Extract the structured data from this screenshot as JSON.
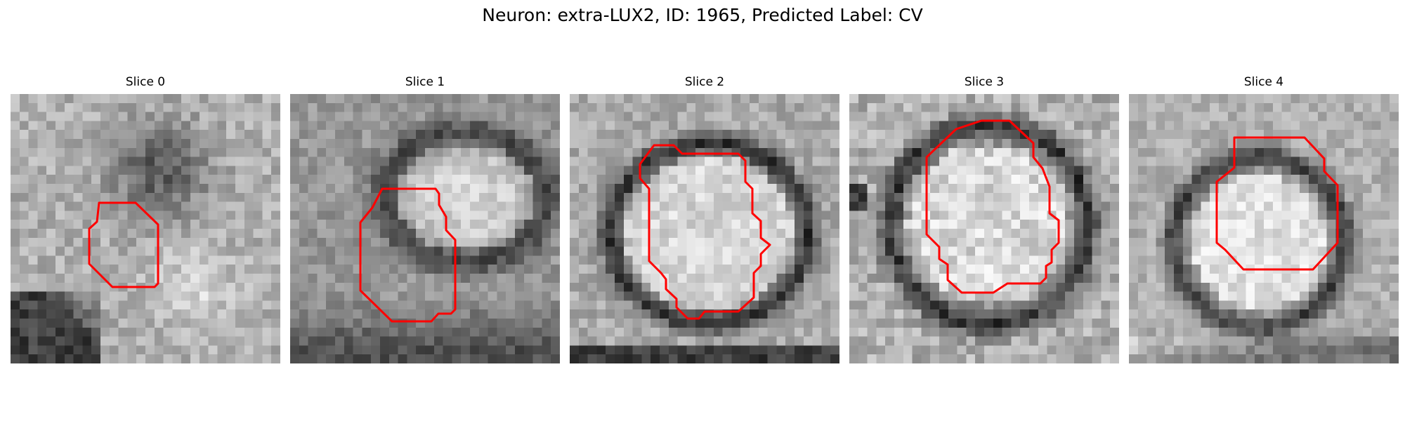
{
  "figure": {
    "title": "Neuron: extra-LUX2, ID: 1965, Predicted Label: CV",
    "contour_color": "#ff0000",
    "colormap": "grayscale"
  },
  "slices": [
    {
      "label": "Slice 0"
    },
    {
      "label": "Slice 1"
    },
    {
      "label": "Slice 2"
    },
    {
      "label": "Slice 3"
    },
    {
      "label": "Slice 4"
    }
  ]
}
